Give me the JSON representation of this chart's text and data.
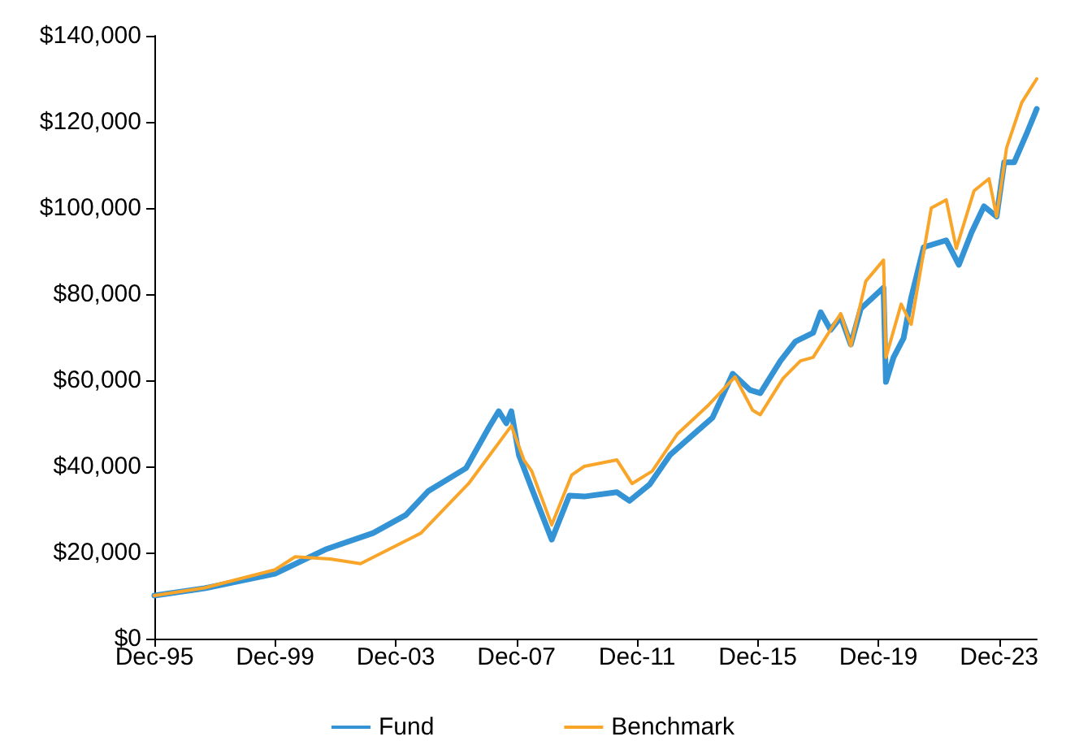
{
  "chart_data": {
    "type": "line",
    "xlim": [
      "1995-12",
      "2025-03"
    ],
    "xticks": [
      {
        "value": "1995-12",
        "label": "Dec-95"
      },
      {
        "value": "1999-12",
        "label": "Dec-99"
      },
      {
        "value": "2003-12",
        "label": "Dec-03"
      },
      {
        "value": "2007-12",
        "label": "Dec-07"
      },
      {
        "value": "2011-12",
        "label": "Dec-11"
      },
      {
        "value": "2015-12",
        "label": "Dec-15"
      },
      {
        "value": "2019-12",
        "label": "Dec-19"
      },
      {
        "value": "2023-12",
        "label": "Dec-23"
      }
    ],
    "ylim": [
      0,
      140000
    ],
    "yticks": [
      {
        "value": 0,
        "label": "$0"
      },
      {
        "value": 20000,
        "label": "$20,000"
      },
      {
        "value": 40000,
        "label": "$40,000"
      },
      {
        "value": 60000,
        "label": "$60,000"
      },
      {
        "value": 80000,
        "label": "$80,000"
      },
      {
        "value": 100000,
        "label": "$100,000"
      },
      {
        "value": 120000,
        "label": "$120,000"
      },
      {
        "value": 140000,
        "label": "$140,000"
      }
    ],
    "grid": false,
    "legend": "bottom",
    "marker": "none",
    "line_style": "solid",
    "series": [
      {
        "name": "Fund",
        "color": "#3393d5",
        "x": [
          "1995-12",
          "1997-08",
          "1999-12",
          "2001-08",
          "2003-03",
          "2004-04",
          "2005-01",
          "2006-04",
          "2007-01",
          "2007-05",
          "2007-08",
          "2007-10",
          "2008-01",
          "2008-06",
          "2009-02",
          "2009-09",
          "2010-03",
          "2011-04",
          "2011-09",
          "2012-05",
          "2013-01",
          "2013-07",
          "2014-06",
          "2015-02",
          "2015-09",
          "2016-01",
          "2016-09",
          "2017-03",
          "2017-10",
          "2018-01",
          "2018-05",
          "2018-09",
          "2019-01",
          "2019-05",
          "2020-02",
          "2020-03",
          "2020-06",
          "2020-10",
          "2021-01",
          "2021-06",
          "2022-03",
          "2022-08",
          "2023-01",
          "2023-06",
          "2023-11",
          "2024-02",
          "2024-06",
          "2024-11",
          "2025-03"
        ],
        "values": [
          10000,
          11700,
          15100,
          20700,
          24500,
          28700,
          34300,
          39600,
          49000,
          52800,
          50000,
          52800,
          42600,
          35000,
          23000,
          33200,
          33000,
          34000,
          32000,
          35800,
          42600,
          45700,
          51300,
          61500,
          57700,
          57000,
          64500,
          69000,
          71000,
          75800,
          71700,
          74700,
          68300,
          76600,
          81500,
          59600,
          65300,
          69800,
          79200,
          90900,
          92500,
          86800,
          94300,
          100400,
          98000,
          110600,
          110600,
          117400,
          123000
        ]
      },
      {
        "name": "Benchmark",
        "color": "#f9a52a",
        "x": [
          "1995-12",
          "1997-08",
          "1999-12",
          "2000-08",
          "2001-10",
          "2002-10",
          "2004-10",
          "2006-05",
          "2007-10",
          "2008-03",
          "2008-06",
          "2009-02",
          "2009-10",
          "2010-03",
          "2011-04",
          "2011-10",
          "2012-06",
          "2013-04",
          "2014-04",
          "2015-03",
          "2015-10",
          "2016-01",
          "2016-10",
          "2017-05",
          "2017-10",
          "2018-09",
          "2019-01",
          "2019-07",
          "2020-02",
          "2020-03",
          "2020-09",
          "2021-01",
          "2021-09",
          "2022-03",
          "2022-07",
          "2023-02",
          "2023-08",
          "2023-11",
          "2024-03",
          "2024-09",
          "2025-03"
        ],
        "values": [
          10000,
          11800,
          16000,
          19000,
          18500,
          17400,
          24500,
          36000,
          49400,
          41500,
          39000,
          26400,
          38000,
          40000,
          41500,
          36000,
          38900,
          47500,
          54000,
          60800,
          53000,
          52000,
          60400,
          64500,
          65300,
          75500,
          68000,
          83000,
          87900,
          65300,
          77700,
          73000,
          100000,
          101900,
          90600,
          104000,
          106800,
          98000,
          114000,
          124500,
          130000
        ]
      }
    ]
  }
}
